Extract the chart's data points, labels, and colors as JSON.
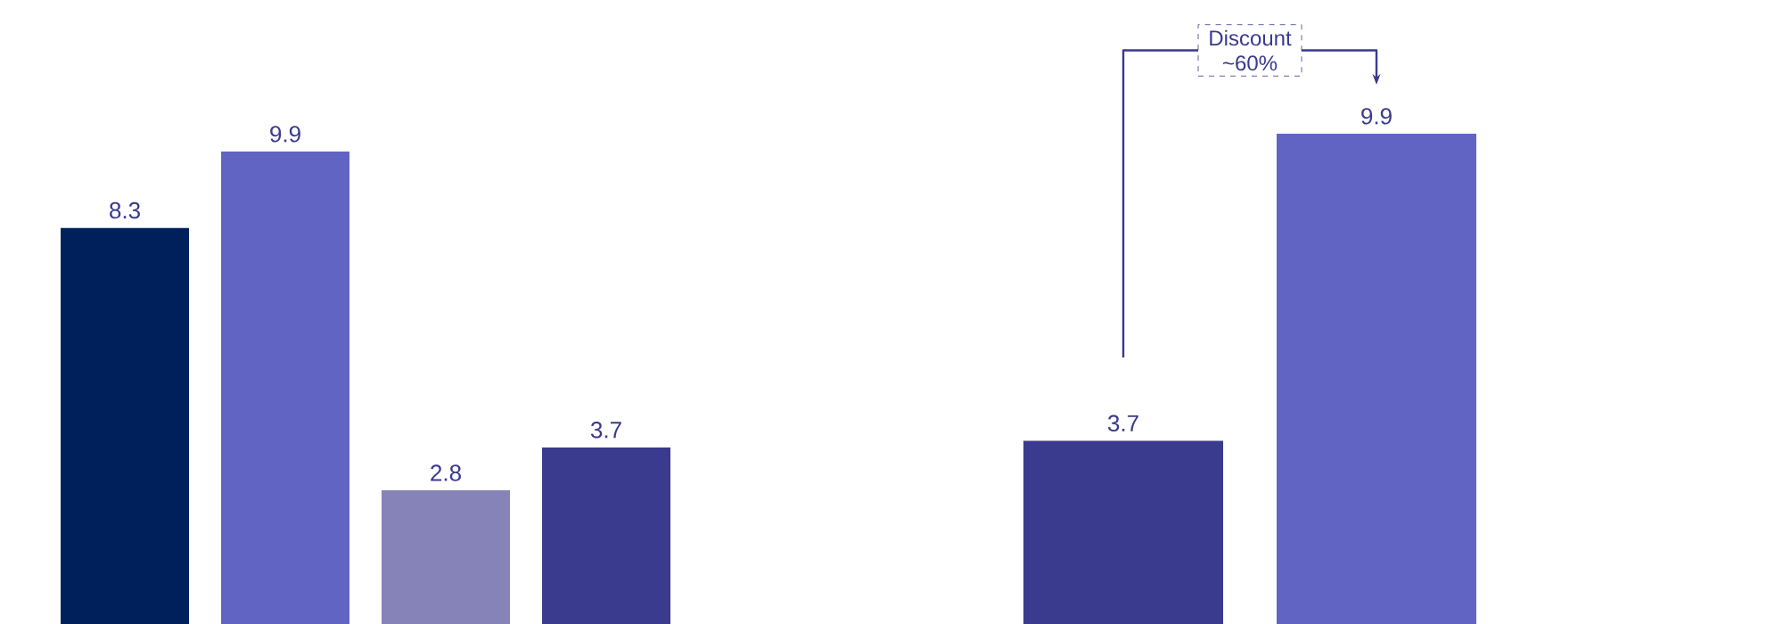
{
  "chart_data": [
    {
      "type": "bar",
      "categories": [
        null,
        null,
        null,
        null
      ],
      "values": [
        8.3,
        9.9,
        2.8,
        3.7
      ],
      "colors": [
        "#00205b",
        "#6264c4",
        "#8683b8",
        "#3a3a8f"
      ],
      "data_labels": true
    },
    {
      "type": "bar",
      "categories": [
        null,
        null
      ],
      "values": [
        3.7,
        9.9
      ],
      "colors": [
        "#3a3a8f",
        "#6264c4"
      ],
      "data_labels": true,
      "annotations": [
        "Discount ~60%"
      ]
    }
  ]
}
